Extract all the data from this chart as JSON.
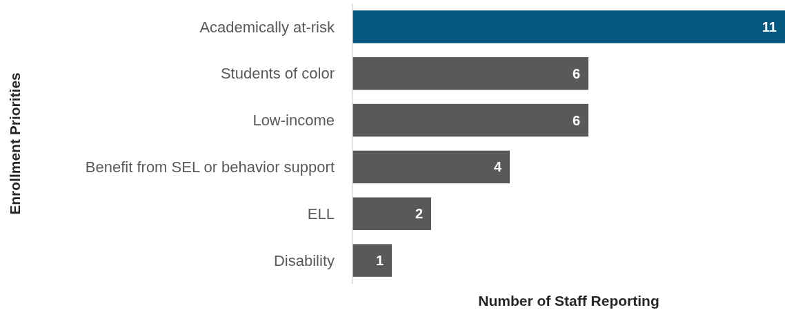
{
  "chart_data": {
    "type": "bar",
    "orientation": "horizontal",
    "categories": [
      "Academically at-risk",
      "Students of color",
      "Low-income",
      "Benefit from SEL or behavior support",
      "ELL",
      "Disability"
    ],
    "values": [
      11,
      6,
      6,
      4,
      2,
      1
    ],
    "colors": [
      "#04587f",
      "#595959",
      "#595959",
      "#595959",
      "#595959",
      "#595959"
    ],
    "data_labels": true,
    "xlabel": "Number of Staff Reporting",
    "ylabel": "Enrollment Priorities"
  }
}
